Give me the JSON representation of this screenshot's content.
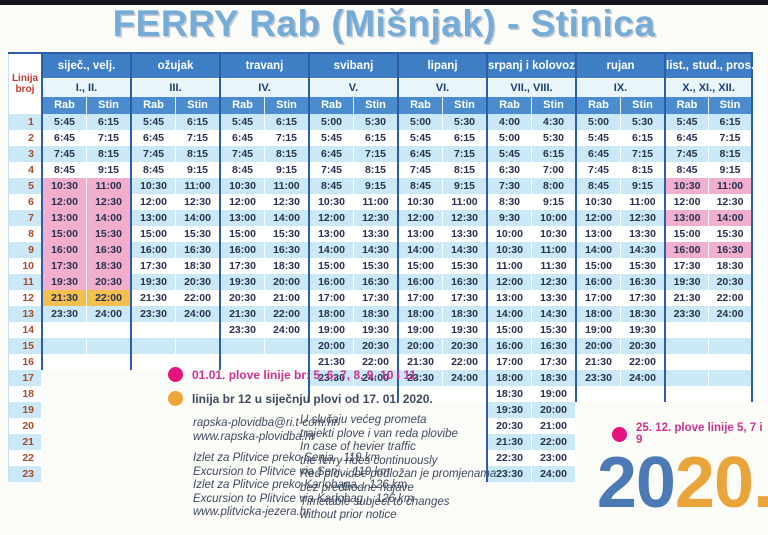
{
  "title": "FERRY Rab (Mišnjak) - Stinica",
  "year": {
    "first": "20",
    "second": "20."
  },
  "timetable": {
    "corner": {
      "line1": "Linija",
      "line2": "broj"
    },
    "ports": [
      "Rab",
      "Stin"
    ],
    "row_count": 23,
    "columns": [
      {
        "month": "siječ., velj.",
        "roman": "I., II.",
        "extent": 16,
        "rows": [
          [
            "5:45",
            "6:15"
          ],
          [
            "6:45",
            "7:15"
          ],
          [
            "7:45",
            "8:15"
          ],
          [
            "8:45",
            "9:15"
          ],
          [
            "10:30",
            "11:00",
            "pink"
          ],
          [
            "12:00",
            "12:30",
            "pink"
          ],
          [
            "13:00",
            "14:00",
            "pink"
          ],
          [
            "15:00",
            "15:30",
            "pink"
          ],
          [
            "16:00",
            "16:30",
            "pink"
          ],
          [
            "17:30",
            "18:30",
            "pink"
          ],
          [
            "19:30",
            "20:30",
            "pink"
          ],
          [
            "21:30",
            "22:00",
            "orange"
          ],
          [
            "23:30",
            "24:00"
          ]
        ]
      },
      {
        "month": "ožujak",
        "roman": "III.",
        "extent": 16,
        "rows": [
          [
            "5:45",
            "6:15"
          ],
          [
            "6:45",
            "7:15"
          ],
          [
            "7:45",
            "8:15"
          ],
          [
            "8:45",
            "9:15"
          ],
          [
            "10:30",
            "11:00"
          ],
          [
            "12:00",
            "12:30"
          ],
          [
            "13:00",
            "14:00"
          ],
          [
            "15:00",
            "15:30"
          ],
          [
            "16:00",
            "16:30"
          ],
          [
            "17:30",
            "18:30"
          ],
          [
            "19:30",
            "20:30"
          ],
          [
            "21:30",
            "22:00"
          ],
          [
            "23:30",
            "24:00"
          ]
        ]
      },
      {
        "month": "travanj",
        "roman": "IV.",
        "extent": 16,
        "rows": [
          [
            "5:45",
            "6:15"
          ],
          [
            "6:45",
            "7:15"
          ],
          [
            "7:45",
            "8:15"
          ],
          [
            "8:45",
            "9:15"
          ],
          [
            "10:30",
            "11:00"
          ],
          [
            "12:00",
            "12:30"
          ],
          [
            "13:00",
            "14:00"
          ],
          [
            "15:00",
            "15:30"
          ],
          [
            "16:00",
            "16:30"
          ],
          [
            "17:30",
            "18:30"
          ],
          [
            "19:30",
            "20:00"
          ],
          [
            "20:30",
            "21:00"
          ],
          [
            "21:30",
            "22:00"
          ],
          [
            "23:30",
            "24:00"
          ]
        ]
      },
      {
        "month": "svibanj",
        "roman": "V.",
        "extent": 18,
        "rows": [
          [
            "5:00",
            "5:30"
          ],
          [
            "5:45",
            "6:15"
          ],
          [
            "6:45",
            "7:15"
          ],
          [
            "7:45",
            "8:15"
          ],
          [
            "8:45",
            "9:15"
          ],
          [
            "10:30",
            "11:00"
          ],
          [
            "12:00",
            "12:30"
          ],
          [
            "13:00",
            "13:30"
          ],
          [
            "14:00",
            "14:30"
          ],
          [
            "15:00",
            "15:30"
          ],
          [
            "16:00",
            "16:30"
          ],
          [
            "17:00",
            "17:30"
          ],
          [
            "18:00",
            "18:30"
          ],
          [
            "19:00",
            "19:30"
          ],
          [
            "20:00",
            "20:30"
          ],
          [
            "21:30",
            "22:00"
          ],
          [
            "23:30",
            "24:00"
          ]
        ]
      },
      {
        "month": "lipanj",
        "roman": "VI.",
        "extent": 18,
        "rows": [
          [
            "5:00",
            "5:30"
          ],
          [
            "5:45",
            "6:15"
          ],
          [
            "6:45",
            "7:15"
          ],
          [
            "7:45",
            "8:15"
          ],
          [
            "8:45",
            "9:15"
          ],
          [
            "10:30",
            "11:00"
          ],
          [
            "12:00",
            "12:30"
          ],
          [
            "13:00",
            "13:30"
          ],
          [
            "14:00",
            "14:30"
          ],
          [
            "15:00",
            "15:30"
          ],
          [
            "16:00",
            "16:30"
          ],
          [
            "17:00",
            "17:30"
          ],
          [
            "18:00",
            "18:30"
          ],
          [
            "19:00",
            "19:30"
          ],
          [
            "20:00",
            "20:30"
          ],
          [
            "21:30",
            "22:00"
          ],
          [
            "23:30",
            "24:00"
          ]
        ]
      },
      {
        "month": "srpanj i kolovoz",
        "roman": "VII., VIII.",
        "extent": 23,
        "rows": [
          [
            "4:00",
            "4:30"
          ],
          [
            "5:00",
            "5:30"
          ],
          [
            "5:45",
            "6:15"
          ],
          [
            "6:30",
            "7:00"
          ],
          [
            "7:30",
            "8:00"
          ],
          [
            "8:30",
            "9:15"
          ],
          [
            "9:30",
            "10:00"
          ],
          [
            "10:00",
            "10:30"
          ],
          [
            "10:30",
            "11:00"
          ],
          [
            "11:00",
            "11:30"
          ],
          [
            "12:00",
            "12:30"
          ],
          [
            "13:00",
            "13:30"
          ],
          [
            "14:00",
            "14:30"
          ],
          [
            "15:00",
            "15:30"
          ],
          [
            "16:00",
            "16:30"
          ],
          [
            "17:00",
            "17:30"
          ],
          [
            "18:00",
            "18:30"
          ],
          [
            "18:30",
            "19:00"
          ],
          [
            "19:30",
            "20:00"
          ],
          [
            "20:30",
            "21:00"
          ],
          [
            "21:30",
            "22:00"
          ],
          [
            "22:30",
            "23:00"
          ],
          [
            "23:30",
            "24:00"
          ]
        ]
      },
      {
        "month": "rujan",
        "roman": "IX.",
        "extent": 18,
        "rows": [
          [
            "5:00",
            "5:30"
          ],
          [
            "5:45",
            "6:15"
          ],
          [
            "6:45",
            "7:15"
          ],
          [
            "7:45",
            "8:15"
          ],
          [
            "8:45",
            "9:15"
          ],
          [
            "10:30",
            "11:00"
          ],
          [
            "12:00",
            "12:30"
          ],
          [
            "13:00",
            "13:30"
          ],
          [
            "14:00",
            "14:30"
          ],
          [
            "15:00",
            "15:30"
          ],
          [
            "16:00",
            "16:30"
          ],
          [
            "17:00",
            "17:30"
          ],
          [
            "18:00",
            "18:30"
          ],
          [
            "19:00",
            "19:30"
          ],
          [
            "20:00",
            "20:30"
          ],
          [
            "21:30",
            "22:00"
          ],
          [
            "23:30",
            "24:00"
          ]
        ]
      },
      {
        "month": "list., stud., pros.",
        "roman": "X., XI., XII.",
        "extent": 18,
        "rows": [
          [
            "5:45",
            "6:15"
          ],
          [
            "6:45",
            "7:15"
          ],
          [
            "7:45",
            "8:15"
          ],
          [
            "8:45",
            "9:15"
          ],
          [
            "10:30",
            "11:00",
            "pink"
          ],
          [
            "12:00",
            "12:30"
          ],
          [
            "13:00",
            "14:00",
            "pink"
          ],
          [
            "15:00",
            "15:30"
          ],
          [
            "16:00",
            "16:30",
            "pink"
          ],
          [
            "17:30",
            "18:30"
          ],
          [
            "19:30",
            "20:30"
          ],
          [
            "21:30",
            "22:00"
          ],
          [
            "23:30",
            "24:00"
          ]
        ]
      }
    ]
  },
  "legend": {
    "jan1": "01.01. plove linije br: 5, 6, 7, 8, 9, 10 i 11",
    "jan12": "linija br 12 u siječnju plovi od 17. 01. 2020.",
    "dec25": "25. 12. plove linije 5, 7 i 9",
    "contact": [
      "rapska-plovidba@ri.t-com.hr",
      "www.rapska-plovidba.hr"
    ],
    "excursions": [
      "Izlet za Plitvice preko Senja...119 km",
      "Excursion to Plitvice via Senj... 119 km",
      "Izlet za Plitvice preko Karlobaga... 126 km",
      "Excursion to Plitvice via Karlobag... 126 km",
      "www.plitvicka-jezera.hr"
    ],
    "notes": [
      "U slučaju većeg prometa",
      "trajekti plove i van reda plovibe",
      "In case of hevier traffic",
      "the ferry rides continuously",
      "Red plovidbe podložan je promjenama",
      "bez predhodne najave",
      "Timetable subject to changes",
      "without prior notice"
    ]
  },
  "colors": {
    "header_blue": "#3d7ec5",
    "stripe": "#cbe8f7",
    "pink_highlight": "#f1aecd",
    "orange_highlight": "#f3bf4e",
    "dot_pink": "#e6127d",
    "dot_orange": "#f0a43a",
    "title_blue": "#74abd7",
    "year_blue": "#4b7ab5",
    "year_orange": "#e9a43c"
  }
}
